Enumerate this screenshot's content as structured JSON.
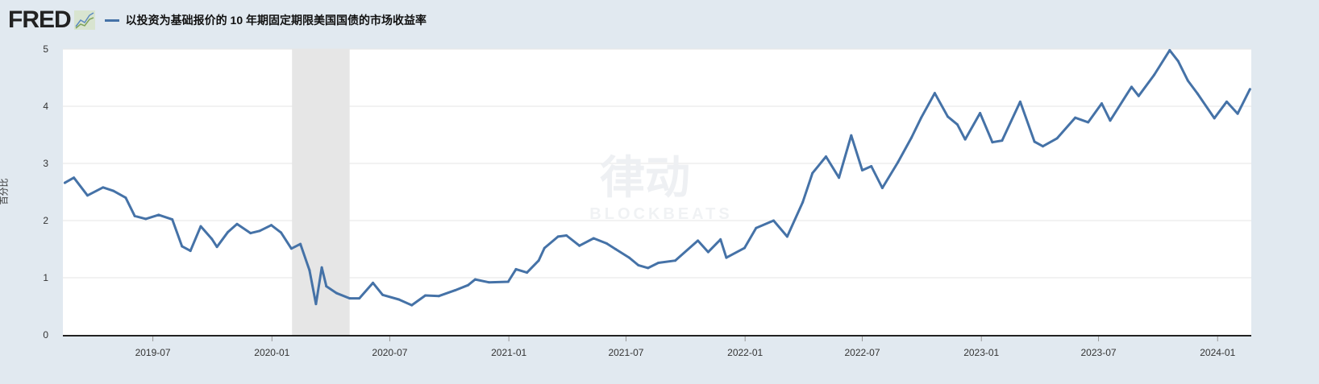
{
  "header": {
    "logo": "FRED",
    "series_title": "以投资为基础报价的 10 年期固定期限美国国债的市场收益率"
  },
  "watermark": {
    "main": "律动",
    "sub": "BLOCKBEATS"
  },
  "colors": {
    "line": "#4572a7",
    "background": "#e1e9f0",
    "recession": "#e6e6e6"
  },
  "chart_data": {
    "type": "line",
    "title": "以投资为基础报价的 10 年期固定期限美国国债的市场收益率",
    "ylabel": "百分比",
    "xlim": [
      "2019-02-12",
      "2024-02-22"
    ],
    "ylim": [
      0,
      5
    ],
    "yticks": [
      0,
      1,
      2,
      3,
      4,
      5
    ],
    "xticks": [
      "2019-07",
      "2020-01",
      "2020-07",
      "2021-01",
      "2021-07",
      "2022-01",
      "2022-07",
      "2023-01",
      "2023-07",
      "2024-01"
    ],
    "grid": true,
    "recession_shading": [
      [
        "2020-02-01",
        "2020-04-30"
      ]
    ],
    "series": [
      {
        "x": [
          "2019-02-15",
          "2019-03-01",
          "2019-03-22",
          "2019-04-15",
          "2019-05-01",
          "2019-05-20",
          "2019-06-03",
          "2019-06-20",
          "2019-07-10",
          "2019-07-31",
          "2019-08-15",
          "2019-08-28",
          "2019-09-13",
          "2019-09-30",
          "2019-10-08",
          "2019-10-25",
          "2019-11-08",
          "2019-11-29",
          "2019-12-13",
          "2019-12-31",
          "2020-01-15",
          "2020-01-31",
          "2020-02-14",
          "2020-02-28",
          "2020-03-09",
          "2020-03-18",
          "2020-03-25",
          "2020-04-10",
          "2020-04-30",
          "2020-05-15",
          "2020-06-05",
          "2020-06-20",
          "2020-07-15",
          "2020-08-04",
          "2020-08-25",
          "2020-09-15",
          "2020-10-10",
          "2020-10-30",
          "2020-11-10",
          "2020-12-01",
          "2020-12-31",
          "2021-01-12",
          "2021-01-29",
          "2021-02-16",
          "2021-02-25",
          "2021-03-18",
          "2021-03-31",
          "2021-04-20",
          "2021-05-12",
          "2021-06-01",
          "2021-06-15",
          "2021-07-06",
          "2021-07-20",
          "2021-08-04",
          "2021-08-20",
          "2021-09-15",
          "2021-10-20",
          "2021-11-05",
          "2021-11-24",
          "2021-12-03",
          "2021-12-31",
          "2022-01-18",
          "2022-02-14",
          "2022-03-07",
          "2022-03-31",
          "2022-04-15",
          "2022-05-06",
          "2022-05-26",
          "2022-06-14",
          "2022-07-01",
          "2022-07-15",
          "2022-08-01",
          "2022-08-25",
          "2022-09-15",
          "2022-09-30",
          "2022-10-21",
          "2022-11-10",
          "2022-11-25",
          "2022-12-07",
          "2022-12-30",
          "2023-01-18",
          "2023-02-02",
          "2023-03-02",
          "2023-03-24",
          "2023-04-06",
          "2023-04-28",
          "2023-05-26",
          "2023-06-15",
          "2023-07-06",
          "2023-07-19",
          "2023-08-21",
          "2023-09-01",
          "2023-09-25",
          "2023-10-19",
          "2023-11-01",
          "2023-11-16",
          "2023-12-01",
          "2023-12-27",
          "2024-01-15",
          "2024-02-01",
          "2024-02-20"
        ],
        "y": [
          2.66,
          2.75,
          2.44,
          2.58,
          2.52,
          2.4,
          2.08,
          2.03,
          2.1,
          2.02,
          1.55,
          1.47,
          1.9,
          1.68,
          1.54,
          1.8,
          1.94,
          1.78,
          1.82,
          1.92,
          1.79,
          1.51,
          1.59,
          1.13,
          0.54,
          1.18,
          0.85,
          0.73,
          0.64,
          0.64,
          0.91,
          0.7,
          0.62,
          0.52,
          0.69,
          0.68,
          0.78,
          0.87,
          0.97,
          0.92,
          0.93,
          1.15,
          1.09,
          1.3,
          1.52,
          1.72,
          1.74,
          1.56,
          1.69,
          1.6,
          1.5,
          1.35,
          1.22,
          1.17,
          1.26,
          1.3,
          1.65,
          1.45,
          1.67,
          1.35,
          1.52,
          1.87,
          2.0,
          1.72,
          2.32,
          2.83,
          3.12,
          2.75,
          3.49,
          2.88,
          2.95,
          2.57,
          3.02,
          3.45,
          3.8,
          4.23,
          3.82,
          3.68,
          3.42,
          3.88,
          3.37,
          3.4,
          4.08,
          3.38,
          3.3,
          3.44,
          3.8,
          3.72,
          4.05,
          3.75,
          4.34,
          4.18,
          4.55,
          4.98,
          4.79,
          4.45,
          4.22,
          3.79,
          4.08,
          3.87,
          4.3
        ]
      }
    ]
  }
}
